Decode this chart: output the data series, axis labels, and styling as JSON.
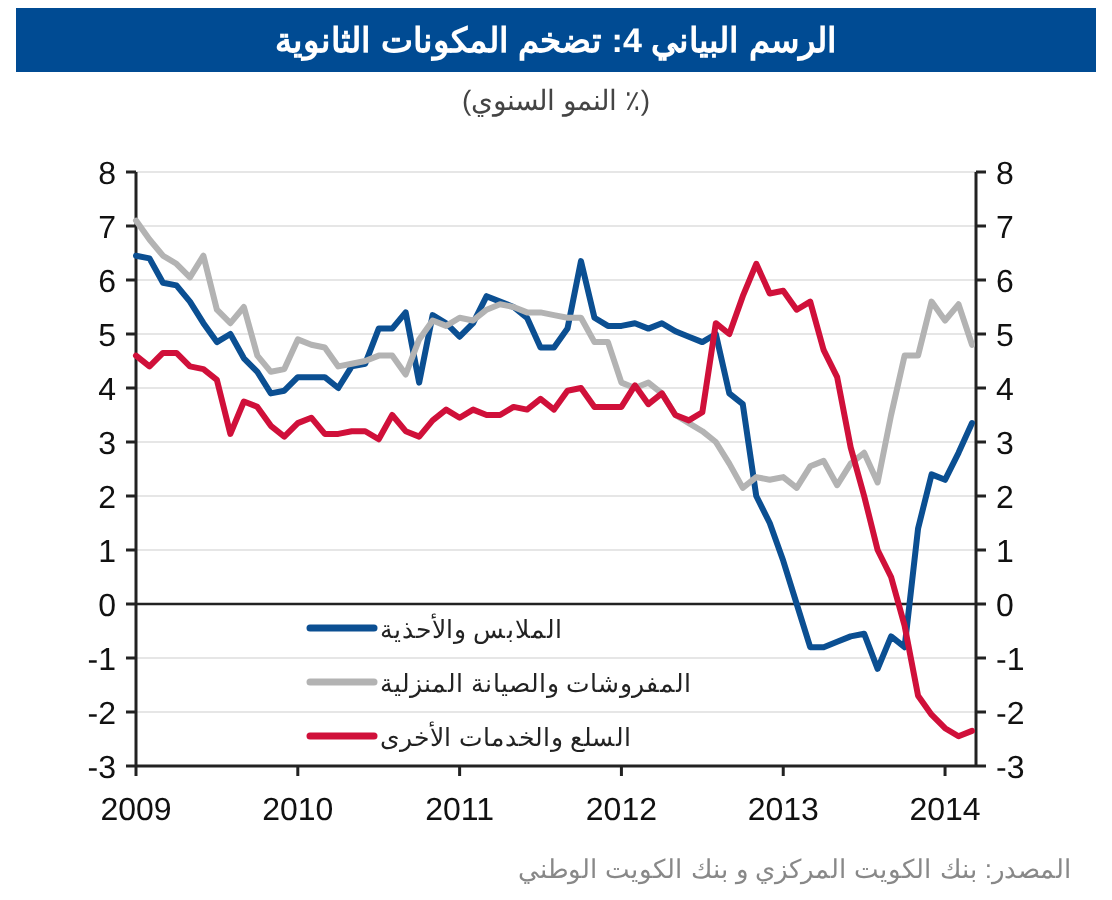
{
  "chart_data": {
    "type": "line",
    "title": "الرسم البياني 4:  تضخم المكونات الثانوية",
    "subtitle": "(٪ النمو السنوي)",
    "annotations": [
      "المصدر: بنك الكويت المركزي و بنك الكويت الوطني"
    ],
    "x": [
      "2009-01",
      "2009-02",
      "2009-03",
      "2009-04",
      "2009-05",
      "2009-06",
      "2009-07",
      "2009-08",
      "2009-09",
      "2009-10",
      "2009-11",
      "2009-12",
      "2010-01",
      "2010-02",
      "2010-03",
      "2010-04",
      "2010-05",
      "2010-06",
      "2010-07",
      "2010-08",
      "2010-09",
      "2010-10",
      "2010-11",
      "2010-12",
      "2011-01",
      "2011-02",
      "2011-03",
      "2011-04",
      "2011-05",
      "2011-06",
      "2011-07",
      "2011-08",
      "2011-09",
      "2011-10",
      "2011-11",
      "2011-12",
      "2012-01",
      "2012-02",
      "2012-03",
      "2012-04",
      "2012-05",
      "2012-06",
      "2012-07",
      "2012-08",
      "2012-09",
      "2012-10",
      "2012-11",
      "2012-12",
      "2013-01",
      "2013-02",
      "2013-03",
      "2013-04",
      "2013-05",
      "2013-06",
      "2013-07",
      "2013-08",
      "2013-09",
      "2013-10",
      "2013-11",
      "2013-12",
      "2014-01",
      "2014-02",
      "2014-03"
    ],
    "series": [
      {
        "name": "الملابس والأحذية",
        "color": "#0b4f92",
        "values": [
          6.45,
          6.4,
          5.95,
          5.9,
          5.6,
          5.2,
          4.85,
          5.0,
          4.55,
          4.3,
          3.9,
          3.95,
          4.2,
          4.2,
          4.2,
          4.0,
          4.4,
          4.45,
          5.1,
          5.1,
          5.4,
          4.1,
          5.35,
          5.2,
          4.95,
          5.2,
          5.7,
          5.6,
          5.5,
          5.3,
          4.75,
          4.75,
          5.1,
          6.35,
          5.3,
          5.15,
          5.15,
          5.2,
          5.1,
          5.2,
          5.05,
          4.95,
          4.85,
          5.0,
          3.9,
          3.7,
          2.0,
          1.5,
          0.8,
          0.0,
          -0.8,
          -0.8,
          -0.7,
          -0.6,
          -0.55,
          -1.2,
          -0.6,
          -0.8,
          1.4,
          2.4,
          2.3,
          2.8,
          3.35
        ]
      },
      {
        "name": "المفروشات والصيانة المنزلية",
        "color": "#b3b3b3",
        "values": [
          7.1,
          6.75,
          6.45,
          6.3,
          6.05,
          6.45,
          5.45,
          5.2,
          5.5,
          4.6,
          4.3,
          4.35,
          4.9,
          4.8,
          4.75,
          4.4,
          4.45,
          4.5,
          4.6,
          4.6,
          4.25,
          4.9,
          5.25,
          5.15,
          5.3,
          5.25,
          5.45,
          5.55,
          5.5,
          5.4,
          5.4,
          5.35,
          5.3,
          5.3,
          4.85,
          4.85,
          4.1,
          4.0,
          4.1,
          3.9,
          3.5,
          3.35,
          3.2,
          3.0,
          2.6,
          2.15,
          2.35,
          2.3,
          2.35,
          2.15,
          2.55,
          2.65,
          2.2,
          2.6,
          2.8,
          2.25,
          3.5,
          4.6,
          4.6,
          5.6,
          5.25,
          5.55,
          4.8
        ]
      },
      {
        "name": "السلع والخدمات الأخرى",
        "color": "#d0103a",
        "values": [
          4.6,
          4.4,
          4.65,
          4.65,
          4.4,
          4.35,
          4.15,
          3.15,
          3.75,
          3.65,
          3.3,
          3.1,
          3.35,
          3.45,
          3.15,
          3.15,
          3.2,
          3.2,
          3.05,
          3.5,
          3.2,
          3.1,
          3.4,
          3.6,
          3.45,
          3.6,
          3.5,
          3.5,
          3.65,
          3.6,
          3.8,
          3.6,
          3.95,
          4.0,
          3.65,
          3.65,
          3.65,
          4.05,
          3.7,
          3.9,
          3.5,
          3.4,
          3.55,
          5.2,
          5.0,
          5.7,
          6.3,
          5.75,
          5.8,
          5.45,
          5.6,
          4.7,
          4.2,
          2.9,
          2.0,
          1.0,
          0.5,
          -0.4,
          -1.7,
          -2.05,
          -2.3,
          -2.45,
          -2.35
        ]
      }
    ],
    "xlim": [
      "2009-01",
      "2014-03-10"
    ],
    "xticks": [
      "2009",
      "2010",
      "2011",
      "2012",
      "2013",
      "2014"
    ],
    "ylim": [
      -3,
      8
    ],
    "yticks": [
      -3,
      -2,
      -1,
      0,
      1,
      2,
      3,
      4,
      5,
      6,
      7,
      8
    ],
    "y2lim": [
      -3,
      8
    ],
    "y2ticks": [
      -3,
      -2,
      -1,
      0,
      1,
      2,
      3,
      4,
      5,
      6,
      7,
      8
    ],
    "grid": "y",
    "legend": "bottom left",
    "marker": "none",
    "line_style": "solid"
  }
}
